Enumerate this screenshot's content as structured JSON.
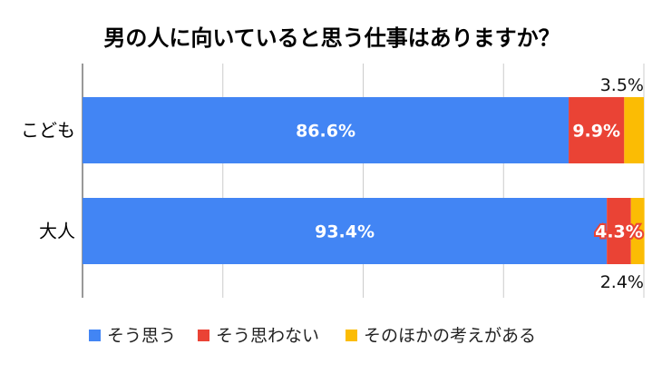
{
  "chart_data": {
    "type": "bar",
    "orientation": "horizontal",
    "stacked": "percent",
    "title": "男の人に向いていると思う仕事はありますか？",
    "categories": [
      "こども",
      "大人"
    ],
    "series": [
      {
        "name": "そう思う",
        "color": "#4285F4",
        "values": [
          86.6,
          93.4
        ],
        "labels": [
          "86.6%",
          "93.4%"
        ]
      },
      {
        "name": "そう思わない",
        "color": "#EA4335",
        "values": [
          9.9,
          4.3
        ],
        "labels": [
          "9.9%",
          "4.3%"
        ]
      },
      {
        "name": "そのほかの考えがある",
        "color": "#FBBC04",
        "values": [
          3.5,
          2.4
        ],
        "labels": [
          "3.5%",
          "2.4%"
        ]
      }
    ],
    "xlim": [
      0,
      100
    ],
    "grid": true,
    "legend_position": "bottom"
  }
}
